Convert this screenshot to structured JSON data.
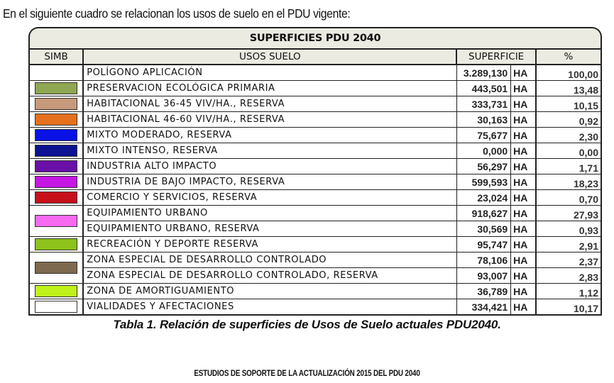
{
  "intro_text": "En el siguiente cuadro se relacionan los usos de suelo en el PDU vigente:",
  "table": {
    "title": "SUPERFICIES PDU 2040",
    "headers": {
      "simb": "SIMB",
      "usos": "USOS SUELO",
      "superficie": "SUPERFICIE",
      "pct": "%"
    },
    "rows": [
      {
        "uso": "POLÍGONO APLICACIÓN",
        "superficie": "3.289,130",
        "unit": "HA",
        "pct": "100,00",
        "color": "none"
      },
      {
        "uso": "PRESERVACION ECOLÓGICA PRIMARIA",
        "superficie": "443,501",
        "unit": "HA",
        "pct": "13,48",
        "color": "#8fa652"
      },
      {
        "uso": "HABITACIONAL 36-45 VIV/HA., RESERVA",
        "superficie": "333,731",
        "unit": "HA",
        "pct": "10,15",
        "color": "#c89a7c"
      },
      {
        "uso": "HABITACIONAL 46-60 VIV/HA., RESERVA",
        "superficie": "30,163",
        "unit": "HA",
        "pct": "0,92",
        "color": "#e5711e"
      },
      {
        "uso": "MIXTO MODERADO, RESERVA",
        "superficie": "75,677",
        "unit": "HA",
        "pct": "2,30",
        "color": "#0a12e6"
      },
      {
        "uso": "MIXTO INTENSO, RESERVA",
        "superficie": "0,000",
        "unit": "HA",
        "pct": "0,00",
        "color": "#0c1290"
      },
      {
        "uso": "INDUSTRIA ALTO IMPACTO",
        "superficie": "56,297",
        "unit": "HA",
        "pct": "1,71",
        "color": "#6a10a8"
      },
      {
        "uso": "INDUSTRIA DE BAJO IMPACTO, RESERVA",
        "superficie": "599,593",
        "unit": "HA",
        "pct": "18,23",
        "color": "#c516e4"
      },
      {
        "uso": "COMERCIO Y SERVICIOS, RESERVA",
        "superficie": "23,024",
        "unit": "HA",
        "pct": "0,70",
        "color": "#c8101a"
      },
      {
        "uso": "EQUIPAMIENTO URBANO",
        "superficie": "918,627",
        "unit": "HA",
        "pct": "27,93",
        "color": "#f66af0",
        "span": 2
      },
      {
        "uso": "EQUIPAMIENTO URBANO, RESERVA",
        "superficie": "30,569",
        "unit": "HA",
        "pct": "0,93",
        "color": null
      },
      {
        "uso": "RECREACIÓN Y DEPORTE RESERVA",
        "superficie": "95,747",
        "unit": "HA",
        "pct": "2,91",
        "color": "#8cc21a"
      },
      {
        "uso": "ZONA ESPECIAL DE DESARROLLO CONTROLADO",
        "superficie": "78,106",
        "unit": "HA",
        "pct": "2,37",
        "color": "#7d6a4e",
        "span": 2
      },
      {
        "uso": "ZONA ESPECIAL DE DESARROLLO CONTROLADO, RESERVA",
        "superficie": "93,007",
        "unit": "HA",
        "pct": "2,83",
        "color": null
      },
      {
        "uso": "ZONA DE AMORTIGUAMIENTO",
        "superficie": "36,789",
        "unit": "HA",
        "pct": "1,12",
        "color": "#bff21a"
      },
      {
        "uso": "VIALIDADES Y AFECTACIONES",
        "superficie": "334,421",
        "unit": "HA",
        "pct": "10,17",
        "color": "#ffffff"
      }
    ]
  },
  "caption": "Tabla 1. Relación de superficies de Usos de Suelo actuales PDU2040.",
  "footer": "ESTUDIOS DE SOPORTE DE LA ACTUALIZACIÓN 2015 DEL PDU 2040",
  "colors": {
    "header_bg": "#ecebe2",
    "border": "#222222"
  }
}
